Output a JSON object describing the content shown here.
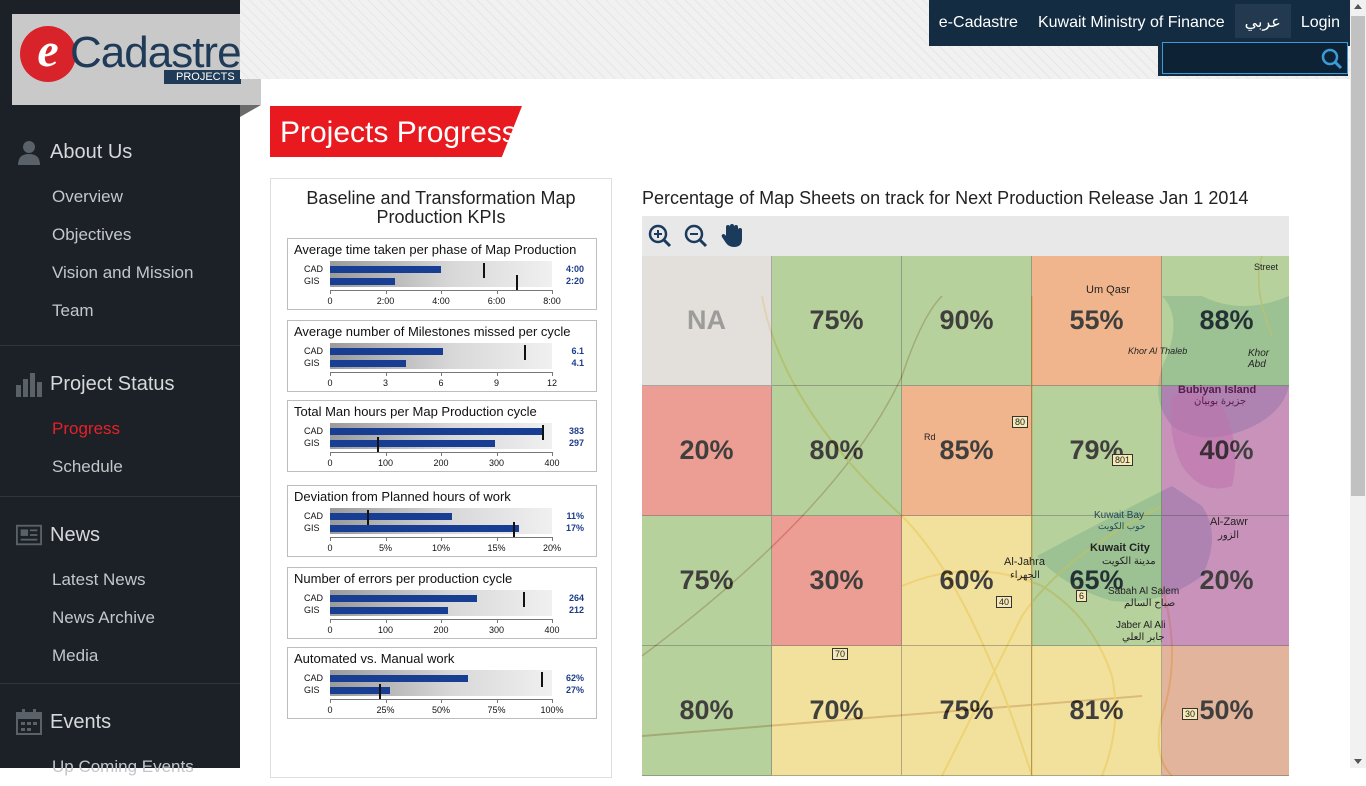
{
  "logo": {
    "letter": "e",
    "word": "Cadastre",
    "tag": "PROJECTS"
  },
  "topnav": {
    "items": [
      "e-Cadastre",
      "Kuwait Ministry of Finance"
    ],
    "lang": "عربي",
    "login": "Login"
  },
  "search": {
    "placeholder": ""
  },
  "sidebar": {
    "sections": [
      {
        "title": "About Us",
        "icon": "person-icon",
        "items": [
          "Overview",
          "Objectives",
          "Vision and Mission",
          "Team"
        ]
      },
      {
        "title": "Project Status",
        "icon": "bar-chart-icon",
        "items": [
          "Progress",
          "Schedule"
        ]
      },
      {
        "title": "News",
        "icon": "newspaper-icon",
        "items": [
          "Latest News",
          "News Archive",
          "Media"
        ]
      },
      {
        "title": "Events",
        "icon": "calendar-icon",
        "items": [
          "Up Coming Events"
        ]
      }
    ],
    "active": "Progress"
  },
  "page": {
    "title": "Projects Progress"
  },
  "kpi": {
    "title_line1": "Baseline and Transformation Map",
    "title_line2": "Production KPIs",
    "row_labels": [
      "CAD",
      "GIS"
    ],
    "charts": [
      {
        "title": "Average time taken per phase of Map Production",
        "ticks": [
          "0",
          "2:00",
          "4:00",
          "6:00",
          "8:00"
        ],
        "max": 8,
        "values": [
          4,
          2.33
        ],
        "value_labels": [
          "4:00",
          "2:20"
        ],
        "markers": [
          5.5,
          6.7
        ]
      },
      {
        "title": "Average number of Milestones missed per cycle",
        "ticks": [
          "0",
          "3",
          "6",
          "9",
          "12"
        ],
        "max": 12,
        "values": [
          6.1,
          4.1
        ],
        "value_labels": [
          "6.1",
          "4.1"
        ],
        "markers": [
          10.5
        ]
      },
      {
        "title": "Total Man hours per Map Production cycle",
        "ticks": [
          "0",
          "100",
          "200",
          "300",
          "400"
        ],
        "max": 400,
        "values": [
          383,
          297
        ],
        "value_labels": [
          "383",
          "297"
        ],
        "markers": [
          382,
          85
        ]
      },
      {
        "title": "Deviation from Planned hours of work",
        "ticks": [
          "0",
          "5%",
          "10%",
          "15%",
          "20%"
        ],
        "max": 20,
        "values": [
          11,
          17
        ],
        "value_labels": [
          "11%",
          "17%"
        ],
        "markers": [
          3.3,
          16.5
        ]
      },
      {
        "title": "Number of errors per production cycle",
        "ticks": [
          "0",
          "100",
          "200",
          "300",
          "400"
        ],
        "max": 400,
        "values": [
          264,
          212
        ],
        "value_labels": [
          "264",
          "212"
        ],
        "markers": [
          348
        ]
      },
      {
        "title": "Automated vs. Manual work",
        "ticks": [
          "0",
          "25%",
          "50%",
          "75%",
          "100%"
        ],
        "max": 100,
        "values": [
          62,
          27
        ],
        "value_labels": [
          "62%",
          "27%"
        ],
        "markers": [
          95,
          22
        ]
      }
    ]
  },
  "map": {
    "title": "Percentage of Map Sheets on track for Next Production Release Jan 1 2014",
    "tools": [
      "zoom-in-icon",
      "zoom-out-icon",
      "pan-hand-icon"
    ],
    "grid": [
      [
        "NA",
        "75%",
        "90%",
        "55%",
        "88%"
      ],
      [
        "20%",
        "80%",
        "85%",
        "79%",
        "40%"
      ],
      [
        "75%",
        "30%",
        "60%",
        "65%",
        "20%"
      ],
      [
        "80%",
        "70%",
        "75%",
        "81%",
        "50%"
      ]
    ],
    "colors": [
      [
        "#e2dfdc",
        "#a9cb8a",
        "#a9cb8a",
        "#f3a877",
        "#a9cb8a"
      ],
      [
        "#ee8a80",
        "#a9cb8a",
        "#f3a877",
        "#a9cb8a",
        "#c07bb2"
      ],
      [
        "#a9cb8a",
        "#ee8a80",
        "#f3e08c",
        "#a9cb8a",
        "#c07bb2"
      ],
      [
        "#a9cb8a",
        "#f3e08c",
        "#f3e08c",
        "#f3e08c",
        "#e0a68a"
      ]
    ],
    "places": [
      "Um Qasr",
      "Khor Al Thaleb",
      "Bubiyan Island",
      "جزيرة بوبيان",
      "Khor Abd",
      "Kuwait Bay",
      "حوب الكويت",
      "Kuwait City",
      "مدينة الكويت",
      "Al-Jahra",
      "الجهراء",
      "Sabah Al Salem",
      "صباح السالم",
      "Jaber Al Ali",
      "جابر العلي",
      "Al-Zawr",
      "الزور",
      "Street",
      "Rd",
      "80",
      "801",
      "70",
      "30",
      "40",
      "6"
    ]
  }
}
